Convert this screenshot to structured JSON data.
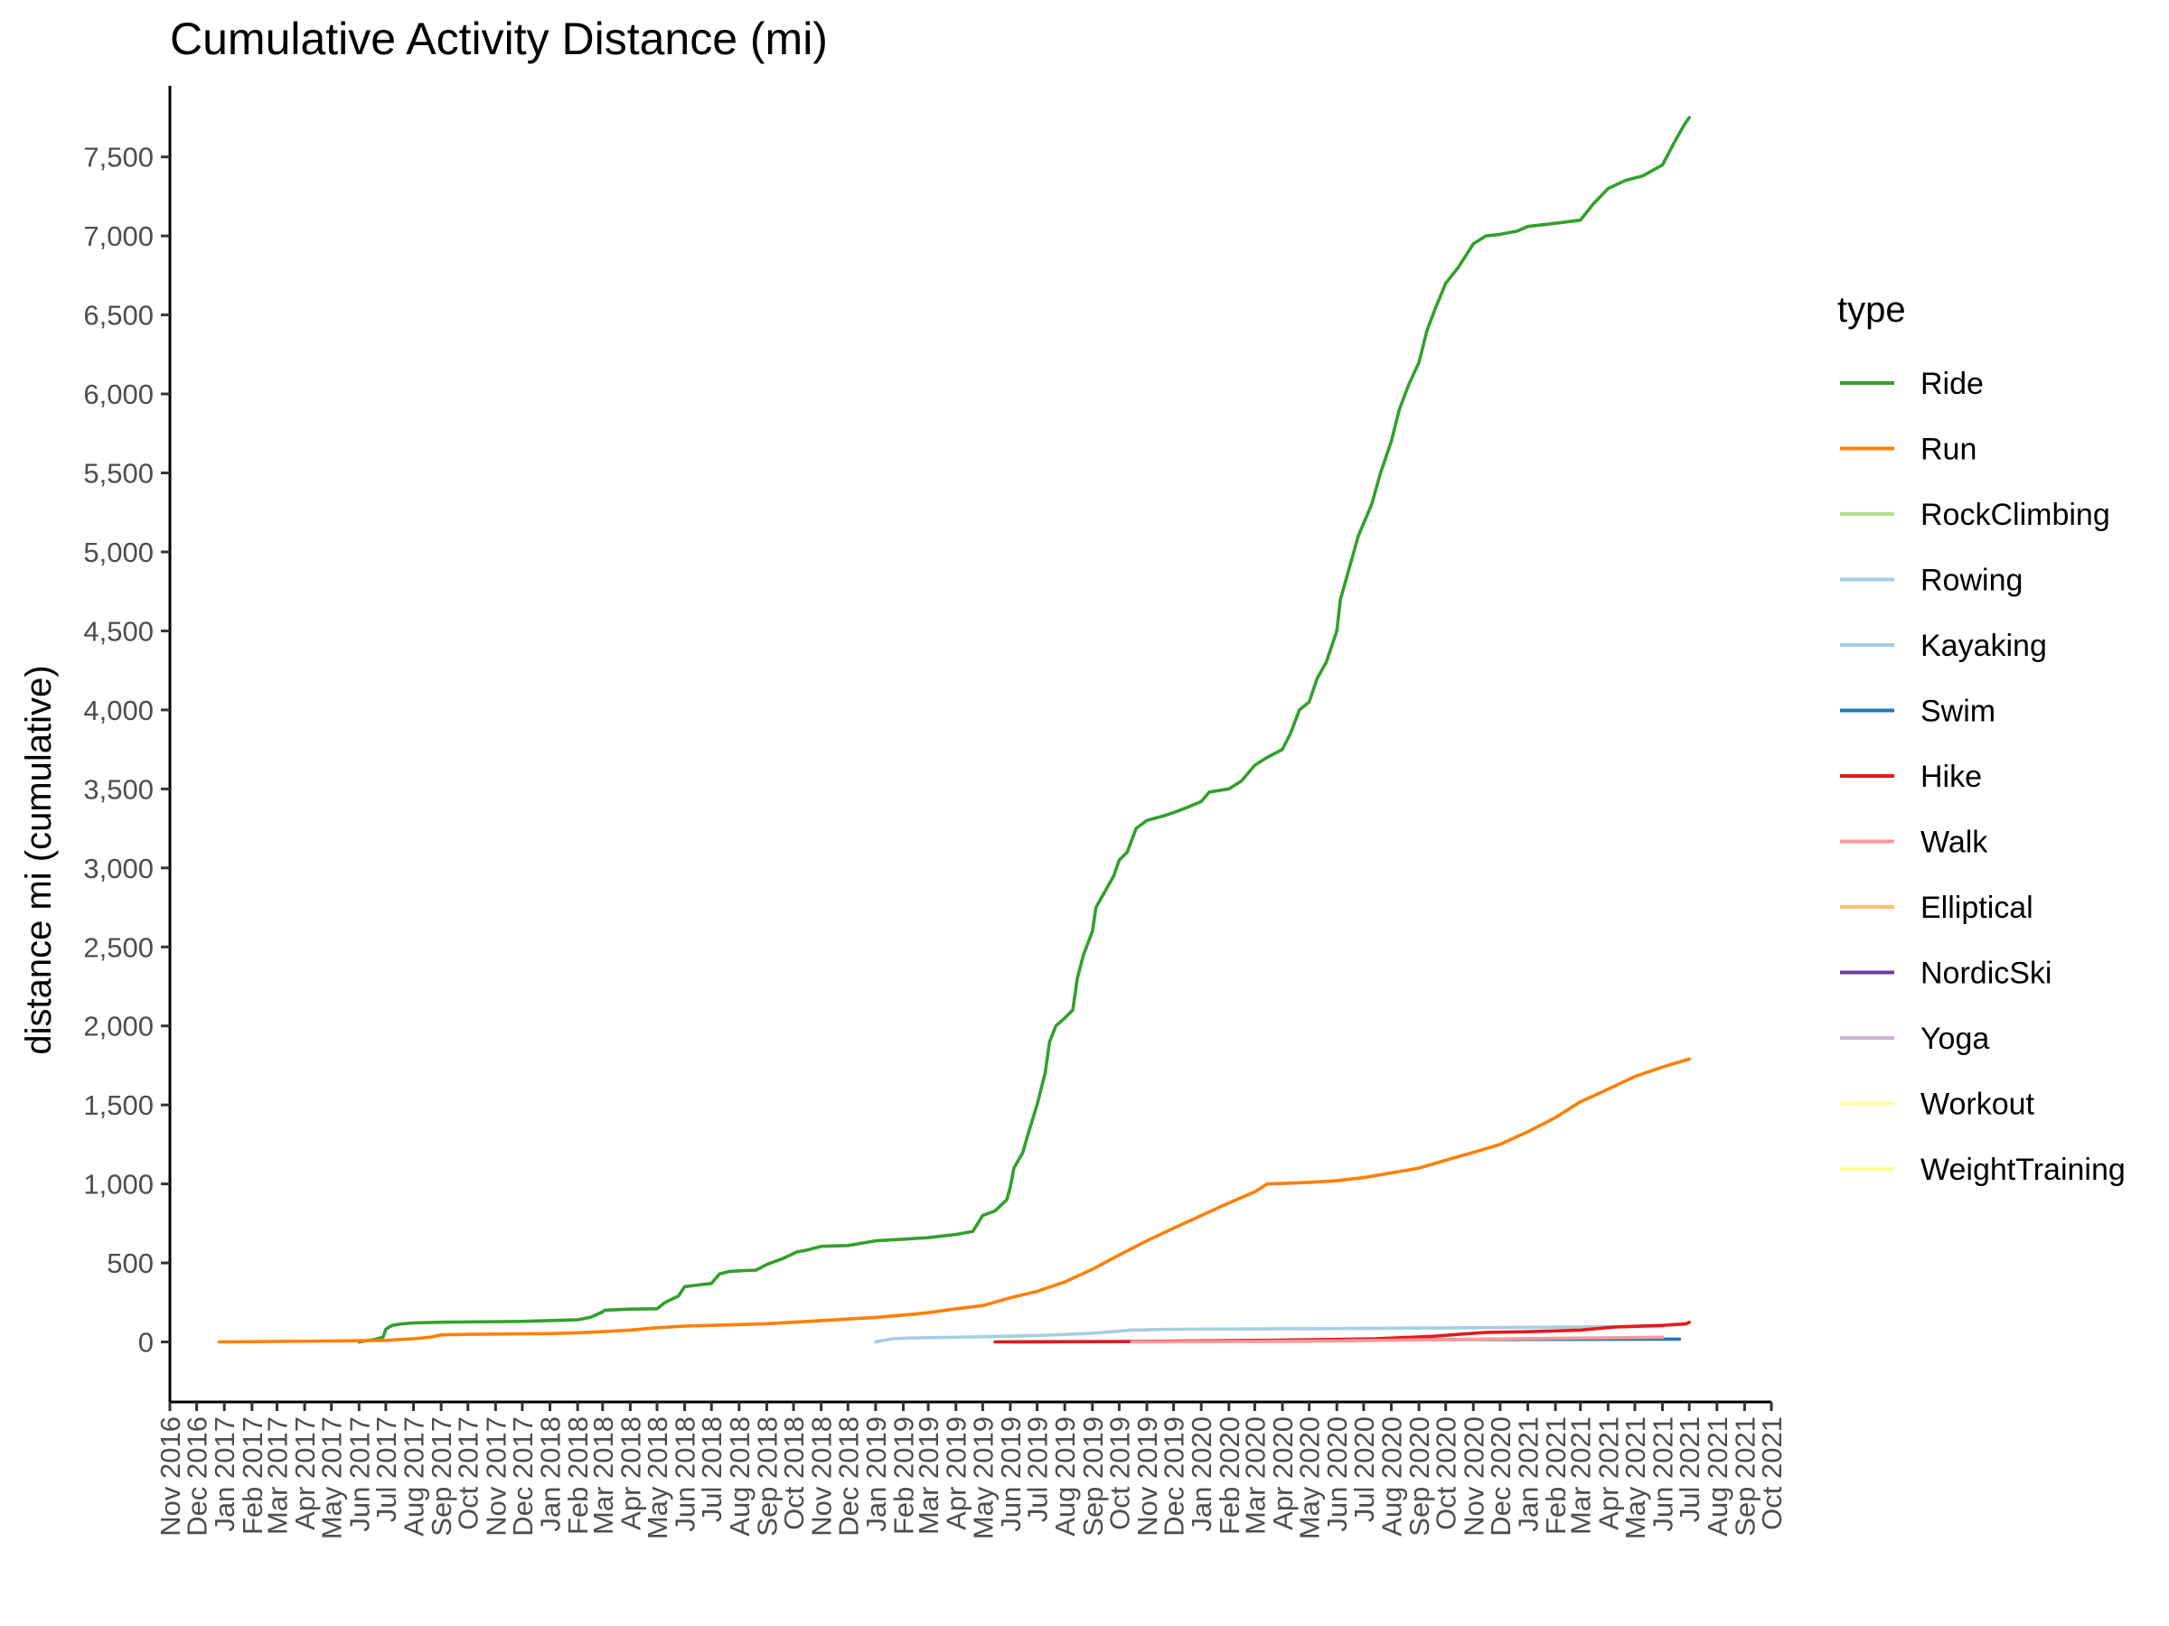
{
  "chart_data": {
    "type": "line",
    "title": "Cumulative Activity Distance (mi)",
    "xlabel": "",
    "ylabel": "distance mi (cumulative)",
    "xlim": [
      "2016-11-01",
      "2021-10-01"
    ],
    "ylim": [
      -380,
      7950
    ],
    "grid": false,
    "legend_position": "right",
    "legend_title": "type",
    "y_ticks": [
      0,
      500,
      1000,
      1500,
      2000,
      2500,
      3000,
      3500,
      4000,
      4500,
      5000,
      5500,
      6000,
      6500,
      7000,
      7500
    ],
    "y_tick_labels": [
      "0",
      "500",
      "1,000",
      "1,500",
      "2,000",
      "2,500",
      "3,000",
      "3,500",
      "4,000",
      "4,500",
      "5,000",
      "5,500",
      "6,000",
      "6,500",
      "7,000",
      "7,500"
    ],
    "x_ticks": [
      {
        "date": "2016-11-01",
        "label": "Nov 2016"
      },
      {
        "date": "2016-12-01",
        "label": "Dec 2016"
      },
      {
        "date": "2017-01-01",
        "label": "Jan 2017"
      },
      {
        "date": "2017-02-01",
        "label": "Feb 2017"
      },
      {
        "date": "2017-03-01",
        "label": "Mar 2017"
      },
      {
        "date": "2017-04-01",
        "label": "Apr 2017"
      },
      {
        "date": "2017-05-01",
        "label": "May 2017"
      },
      {
        "date": "2017-06-01",
        "label": "Jun 2017"
      },
      {
        "date": "2017-07-01",
        "label": "Jul 2017"
      },
      {
        "date": "2017-08-01",
        "label": "Aug 2017"
      },
      {
        "date": "2017-09-01",
        "label": "Sep 2017"
      },
      {
        "date": "2017-10-01",
        "label": "Oct 2017"
      },
      {
        "date": "2017-11-01",
        "label": "Nov 2017"
      },
      {
        "date": "2017-12-01",
        "label": "Dec 2017"
      },
      {
        "date": "2018-01-01",
        "label": "Jan 2018"
      },
      {
        "date": "2018-02-01",
        "label": "Feb 2018"
      },
      {
        "date": "2018-03-01",
        "label": "Mar 2018"
      },
      {
        "date": "2018-04-01",
        "label": "Apr 2018"
      },
      {
        "date": "2018-05-01",
        "label": "May 2018"
      },
      {
        "date": "2018-06-01",
        "label": "Jun 2018"
      },
      {
        "date": "2018-07-01",
        "label": "Jul 2018"
      },
      {
        "date": "2018-08-01",
        "label": "Aug 2018"
      },
      {
        "date": "2018-09-01",
        "label": "Sep 2018"
      },
      {
        "date": "2018-10-01",
        "label": "Oct 2018"
      },
      {
        "date": "2018-11-01",
        "label": "Nov 2018"
      },
      {
        "date": "2018-12-01",
        "label": "Dec 2018"
      },
      {
        "date": "2019-01-01",
        "label": "Jan 2019"
      },
      {
        "date": "2019-02-01",
        "label": "Feb 2019"
      },
      {
        "date": "2019-03-01",
        "label": "Mar 2019"
      },
      {
        "date": "2019-04-01",
        "label": "Apr 2019"
      },
      {
        "date": "2019-05-01",
        "label": "May 2019"
      },
      {
        "date": "2019-06-01",
        "label": "Jun 2019"
      },
      {
        "date": "2019-07-01",
        "label": "Jul 2019"
      },
      {
        "date": "2019-08-01",
        "label": "Aug 2019"
      },
      {
        "date": "2019-09-01",
        "label": "Sep 2019"
      },
      {
        "date": "2019-10-01",
        "label": "Oct 2019"
      },
      {
        "date": "2019-11-01",
        "label": "Nov 2019"
      },
      {
        "date": "2019-12-01",
        "label": "Dec 2019"
      },
      {
        "date": "2020-01-01",
        "label": "Jan 2020"
      },
      {
        "date": "2020-02-01",
        "label": "Feb 2020"
      },
      {
        "date": "2020-03-01",
        "label": "Mar 2020"
      },
      {
        "date": "2020-04-01",
        "label": "Apr 2020"
      },
      {
        "date": "2020-05-01",
        "label": "May 2020"
      },
      {
        "date": "2020-06-01",
        "label": "Jun 2020"
      },
      {
        "date": "2020-07-01",
        "label": "Jul 2020"
      },
      {
        "date": "2020-08-01",
        "label": "Aug 2020"
      },
      {
        "date": "2020-09-01",
        "label": "Sep 2020"
      },
      {
        "date": "2020-10-01",
        "label": "Oct 2020"
      },
      {
        "date": "2020-11-01",
        "label": "Nov 2020"
      },
      {
        "date": "2020-12-01",
        "label": "Dec 2020"
      },
      {
        "date": "2021-01-01",
        "label": "Jan 2021"
      },
      {
        "date": "2021-02-01",
        "label": "Feb 2021"
      },
      {
        "date": "2021-03-01",
        "label": "Mar 2021"
      },
      {
        "date": "2021-04-01",
        "label": "Apr 2021"
      },
      {
        "date": "2021-05-01",
        "label": "May 2021"
      },
      {
        "date": "2021-06-01",
        "label": "Jun 2021"
      },
      {
        "date": "2021-07-01",
        "label": "Jul 2021"
      },
      {
        "date": "2021-08-01",
        "label": "Aug 2021"
      },
      {
        "date": "2021-09-01",
        "label": "Sep 2021"
      },
      {
        "date": "2021-10-01",
        "label": "Oct 2021"
      }
    ],
    "series": [
      {
        "name": "Ride",
        "color": "#33a02c",
        "points": [
          [
            "2017-06-01",
            0
          ],
          [
            "2017-06-18",
            15
          ],
          [
            "2017-06-28",
            30
          ],
          [
            "2017-07-01",
            80
          ],
          [
            "2017-07-08",
            105
          ],
          [
            "2017-07-20",
            115
          ],
          [
            "2017-08-01",
            120
          ],
          [
            "2017-09-01",
            125
          ],
          [
            "2017-12-01",
            130
          ],
          [
            "2018-02-01",
            140
          ],
          [
            "2018-02-15",
            155
          ],
          [
            "2018-03-01",
            190
          ],
          [
            "2018-03-03",
            200
          ],
          [
            "2018-03-20",
            205
          ],
          [
            "2018-04-01",
            208
          ],
          [
            "2018-05-01",
            210
          ],
          [
            "2018-05-10",
            250
          ],
          [
            "2018-05-25",
            290
          ],
          [
            "2018-06-01",
            350
          ],
          [
            "2018-06-15",
            360
          ],
          [
            "2018-07-01",
            370
          ],
          [
            "2018-07-10",
            430
          ],
          [
            "2018-07-20",
            445
          ],
          [
            "2018-08-01",
            450
          ],
          [
            "2018-08-20",
            455
          ],
          [
            "2018-09-01",
            490
          ],
          [
            "2018-09-20",
            530
          ],
          [
            "2018-10-05",
            570
          ],
          [
            "2018-10-15",
            580
          ],
          [
            "2018-11-01",
            605
          ],
          [
            "2018-12-01",
            610
          ],
          [
            "2019-01-01",
            640
          ],
          [
            "2019-02-01",
            650
          ],
          [
            "2019-03-01",
            660
          ],
          [
            "2019-04-01",
            680
          ],
          [
            "2019-04-20",
            700
          ],
          [
            "2019-05-01",
            800
          ],
          [
            "2019-05-15",
            830
          ],
          [
            "2019-05-28",
            900
          ],
          [
            "2019-06-01",
            980
          ],
          [
            "2019-06-05",
            1100
          ],
          [
            "2019-06-15",
            1200
          ],
          [
            "2019-06-20",
            1300
          ],
          [
            "2019-07-01",
            1500
          ],
          [
            "2019-07-10",
            1700
          ],
          [
            "2019-07-15",
            1900
          ],
          [
            "2019-07-22",
            2000
          ],
          [
            "2019-08-01",
            2050
          ],
          [
            "2019-08-10",
            2100
          ],
          [
            "2019-08-15",
            2300
          ],
          [
            "2019-08-22",
            2450
          ],
          [
            "2019-09-01",
            2600
          ],
          [
            "2019-09-05",
            2750
          ],
          [
            "2019-09-15",
            2850
          ],
          [
            "2019-09-25",
            2950
          ],
          [
            "2019-10-01",
            3050
          ],
          [
            "2019-10-10",
            3100
          ],
          [
            "2019-10-20",
            3250
          ],
          [
            "2019-11-01",
            3300
          ],
          [
            "2019-11-20",
            3330
          ],
          [
            "2019-12-01",
            3350
          ],
          [
            "2019-12-15",
            3380
          ],
          [
            "2020-01-01",
            3420
          ],
          [
            "2020-01-10",
            3480
          ],
          [
            "2020-02-01",
            3500
          ],
          [
            "2020-02-15",
            3550
          ],
          [
            "2020-03-01",
            3650
          ],
          [
            "2020-03-15",
            3700
          ],
          [
            "2020-04-01",
            3750
          ],
          [
            "2020-04-10",
            3850
          ],
          [
            "2020-04-20",
            4000
          ],
          [
            "2020-05-01",
            4050
          ],
          [
            "2020-05-10",
            4200
          ],
          [
            "2020-05-20",
            4300
          ],
          [
            "2020-06-01",
            4500
          ],
          [
            "2020-06-05",
            4700
          ],
          [
            "2020-06-15",
            4900
          ],
          [
            "2020-06-25",
            5100
          ],
          [
            "2020-07-10",
            5300
          ],
          [
            "2020-07-20",
            5500
          ],
          [
            "2020-08-01",
            5700
          ],
          [
            "2020-08-10",
            5900
          ],
          [
            "2020-08-20",
            6050
          ],
          [
            "2020-09-01",
            6200
          ],
          [
            "2020-09-10",
            6400
          ],
          [
            "2020-09-20",
            6550
          ],
          [
            "2020-10-01",
            6700
          ],
          [
            "2020-10-15",
            6800
          ],
          [
            "2020-11-01",
            6950
          ],
          [
            "2020-11-15",
            7000
          ],
          [
            "2020-12-01",
            7010
          ],
          [
            "2020-12-20",
            7030
          ],
          [
            "2021-01-01",
            7060
          ],
          [
            "2021-02-01",
            7080
          ],
          [
            "2021-03-01",
            7100
          ],
          [
            "2021-03-15",
            7200
          ],
          [
            "2021-04-01",
            7300
          ],
          [
            "2021-04-20",
            7350
          ],
          [
            "2021-05-10",
            7380
          ],
          [
            "2021-06-01",
            7450
          ],
          [
            "2021-06-15",
            7600
          ],
          [
            "2021-06-25",
            7700
          ],
          [
            "2021-07-01",
            7750
          ]
        ]
      },
      {
        "name": "Run",
        "color": "#ff7f00",
        "points": [
          [
            "2016-12-26",
            0
          ],
          [
            "2017-03-01",
            3
          ],
          [
            "2017-05-01",
            6
          ],
          [
            "2017-07-01",
            10
          ],
          [
            "2017-08-01",
            20
          ],
          [
            "2017-08-20",
            30
          ],
          [
            "2017-09-01",
            45
          ],
          [
            "2017-10-01",
            48
          ],
          [
            "2017-11-01",
            50
          ],
          [
            "2018-01-01",
            53
          ],
          [
            "2018-02-01",
            58
          ],
          [
            "2018-03-01",
            65
          ],
          [
            "2018-04-01",
            75
          ],
          [
            "2018-05-01",
            90
          ],
          [
            "2018-06-01",
            100
          ],
          [
            "2018-07-01",
            105
          ],
          [
            "2018-08-01",
            110
          ],
          [
            "2018-09-01",
            115
          ],
          [
            "2018-10-01",
            125
          ],
          [
            "2018-11-01",
            135
          ],
          [
            "2018-12-01",
            145
          ],
          [
            "2019-01-01",
            155
          ],
          [
            "2019-02-01",
            170
          ],
          [
            "2019-03-01",
            185
          ],
          [
            "2019-04-01",
            210
          ],
          [
            "2019-05-01",
            230
          ],
          [
            "2019-06-01",
            280
          ],
          [
            "2019-07-01",
            320
          ],
          [
            "2019-08-01",
            380
          ],
          [
            "2019-09-01",
            460
          ],
          [
            "2019-10-01",
            550
          ],
          [
            "2019-11-01",
            640
          ],
          [
            "2019-12-01",
            720
          ],
          [
            "2020-01-01",
            800
          ],
          [
            "2020-02-01",
            880
          ],
          [
            "2020-03-01",
            950
          ],
          [
            "2020-03-15",
            1000
          ],
          [
            "2020-04-01",
            1003
          ],
          [
            "2020-05-01",
            1010
          ],
          [
            "2020-06-01",
            1020
          ],
          [
            "2020-07-01",
            1040
          ],
          [
            "2020-08-01",
            1070
          ],
          [
            "2020-09-01",
            1100
          ],
          [
            "2020-10-01",
            1150
          ],
          [
            "2020-11-01",
            1200
          ],
          [
            "2020-12-01",
            1250
          ],
          [
            "2021-01-01",
            1330
          ],
          [
            "2021-02-01",
            1420
          ],
          [
            "2021-03-01",
            1520
          ],
          [
            "2021-04-01",
            1600
          ],
          [
            "2021-05-01",
            1680
          ],
          [
            "2021-06-01",
            1740
          ],
          [
            "2021-07-01",
            1790
          ]
        ]
      },
      {
        "name": "RockClimbing",
        "color": "#b2df8a",
        "points": []
      },
      {
        "name": "Rowing",
        "color": "#a6cee3",
        "points": [
          [
            "2019-01-01",
            0
          ],
          [
            "2019-01-20",
            20
          ],
          [
            "2019-02-10",
            25
          ],
          [
            "2019-04-01",
            30
          ],
          [
            "2019-07-01",
            40
          ],
          [
            "2019-09-01",
            55
          ],
          [
            "2019-10-15",
            75
          ],
          [
            "2019-12-01",
            80
          ],
          [
            "2020-06-01",
            85
          ],
          [
            "2020-11-01",
            90
          ],
          [
            "2021-03-01",
            95
          ],
          [
            "2021-06-01",
            98
          ]
        ]
      },
      {
        "name": "Kayaking",
        "color": "#a6cee3",
        "points": []
      },
      {
        "name": "Swim",
        "color": "#1f78b4",
        "points": [
          [
            "2019-06-01",
            0
          ],
          [
            "2019-10-15",
            2
          ],
          [
            "2020-03-01",
            10
          ],
          [
            "2020-10-01",
            15
          ],
          [
            "2021-06-20",
            18
          ]
        ]
      },
      {
        "name": "Hike",
        "color": "#e31a1c",
        "points": [
          [
            "2019-05-15",
            0
          ],
          [
            "2019-10-15",
            3
          ],
          [
            "2020-03-01",
            8
          ],
          [
            "2020-07-15",
            20
          ],
          [
            "2020-09-15",
            35
          ],
          [
            "2020-10-20",
            50
          ],
          [
            "2020-11-15",
            60
          ],
          [
            "2021-01-01",
            65
          ],
          [
            "2021-03-01",
            75
          ],
          [
            "2021-04-10",
            95
          ],
          [
            "2021-06-01",
            105
          ],
          [
            "2021-06-28",
            115
          ],
          [
            "2021-07-01",
            125
          ]
        ]
      },
      {
        "name": "Walk",
        "color": "#fb9a99",
        "points": [
          [
            "2019-10-15",
            0
          ],
          [
            "2020-05-01",
            5
          ],
          [
            "2020-10-01",
            15
          ],
          [
            "2021-03-01",
            25
          ],
          [
            "2021-06-01",
            30
          ]
        ]
      },
      {
        "name": "Elliptical",
        "color": "#fdbf6f",
        "points": []
      },
      {
        "name": "NordicSki",
        "color": "#6a3d9a",
        "points": []
      },
      {
        "name": "Yoga",
        "color": "#cab2d6",
        "points": []
      },
      {
        "name": "Workout",
        "color": "#ffff99",
        "points": []
      },
      {
        "name": "WeightTraining",
        "color": "#ffff99",
        "points": []
      }
    ]
  }
}
